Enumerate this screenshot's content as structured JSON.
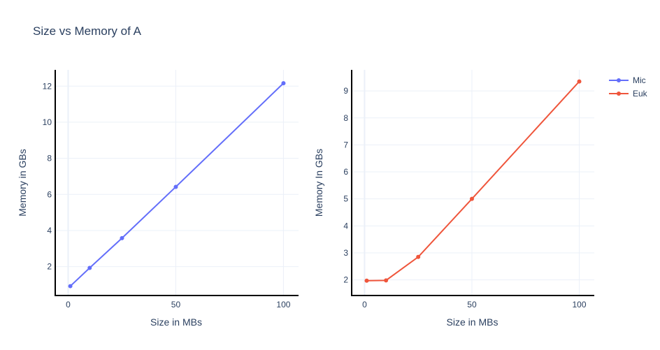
{
  "chart_data": [
    {
      "type": "line",
      "title": "Size vs Memory of A",
      "xlabel": "Size in MBs",
      "ylabel": "Memory in GBs",
      "xlim": [
        -6,
        107
      ],
      "ylim": [
        0.4,
        12.9
      ],
      "xticks": [
        0,
        50,
        100
      ],
      "yticks": [
        2,
        4,
        6,
        8,
        10,
        12
      ],
      "grid": true,
      "series": [
        {
          "name": "Mic",
          "color": "#636efa",
          "x": [
            1,
            10,
            25,
            50,
            100
          ],
          "y": [
            0.92,
            1.93,
            3.58,
            6.42,
            12.16
          ]
        }
      ]
    },
    {
      "type": "line",
      "xlabel": "Size in MBs",
      "ylabel": "Memory In GBs",
      "xlim": [
        -6,
        107
      ],
      "ylim": [
        1.42,
        9.78
      ],
      "xticks": [
        0,
        50,
        100
      ],
      "yticks": [
        2,
        3,
        4,
        5,
        6,
        7,
        8,
        9
      ],
      "grid": true,
      "series": [
        {
          "name": "Euk",
          "color": "#ef553b",
          "x": [
            1,
            10,
            25,
            50,
            100
          ],
          "y": [
            1.97,
            1.98,
            2.85,
            5.0,
            9.35
          ]
        }
      ]
    }
  ],
  "legend": {
    "position": "top-right",
    "items": [
      {
        "label": "Mic",
        "color": "#636efa"
      },
      {
        "label": "Euk",
        "color": "#ef553b"
      }
    ]
  }
}
